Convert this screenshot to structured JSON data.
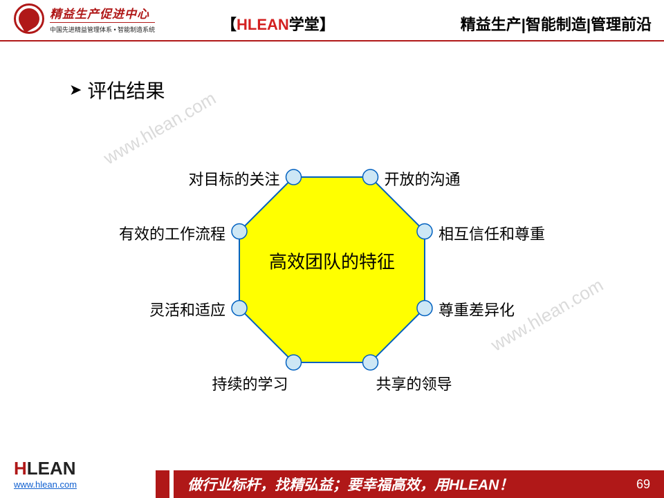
{
  "header": {
    "logo_title": "精益生产促进中心",
    "logo_sub": "中国先进精益管理体系 • 智能制造系统",
    "center_bracket_l": "【",
    "center_red": "HLEAN",
    "center_black": "学堂",
    "center_bracket_r": "】",
    "right": "精益生产|智能制造|管理前沿"
  },
  "section": {
    "chevron": "➤",
    "title": "评估结果"
  },
  "diagram": {
    "type": "octagon-radial",
    "center_label": "高效团队的特征",
    "octagon_fill": "#ffff00",
    "octagon_stroke": "#0060c0",
    "octagon_stroke_width": 2,
    "octagon_radius": 145,
    "node_radius": 11,
    "node_fill": "#cde7f5",
    "node_stroke": "#0060c0",
    "node_stroke_width": 1.5,
    "background": "#ffffff",
    "label_fontsize": 22,
    "center_fontsize": 26,
    "nodes": [
      {
        "angle": 247.5,
        "label": "对目标的关注",
        "label_side": "left"
      },
      {
        "angle": 292.5,
        "label": "开放的沟通",
        "label_side": "right"
      },
      {
        "angle": 202.5,
        "label": "有效的工作流程",
        "label_side": "left"
      },
      {
        "angle": 337.5,
        "label": "相互信任和尊重",
        "label_side": "right"
      },
      {
        "angle": 157.5,
        "label": "灵活和适应",
        "label_side": "left"
      },
      {
        "angle": 22.5,
        "label": "尊重差异化",
        "label_side": "right"
      },
      {
        "angle": 112.5,
        "label": "持续的学习",
        "label_side": "bottom-left"
      },
      {
        "angle": 67.5,
        "label": "共享的领导",
        "label_side": "bottom-right"
      }
    ]
  },
  "watermark": "www.hlean.com",
  "footer": {
    "logo_h": "H",
    "logo_lean": "LEAN",
    "url": "www.hlean.com",
    "slogan": "做行业标杆，找精弘益；要幸福高效，用HLEAN！",
    "page": "69",
    "bar_color": "#b01818"
  }
}
